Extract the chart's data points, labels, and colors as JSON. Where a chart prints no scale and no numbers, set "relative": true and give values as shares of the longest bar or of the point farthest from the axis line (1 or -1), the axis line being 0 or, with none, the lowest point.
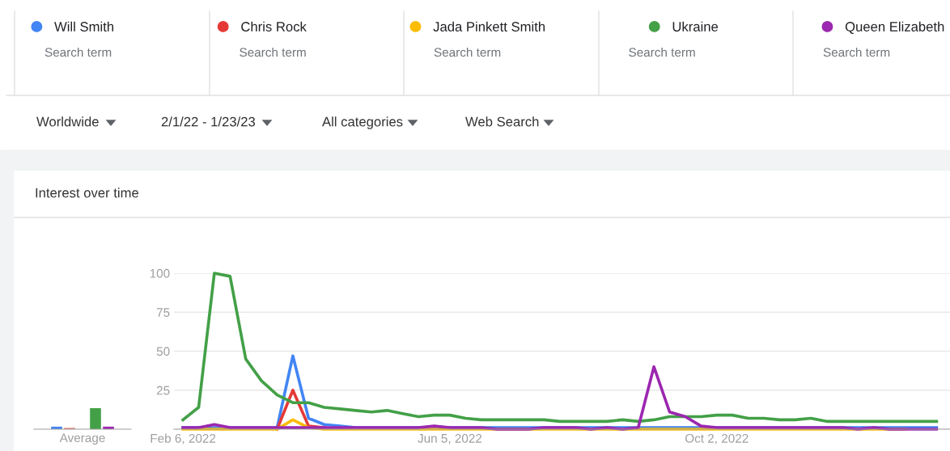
{
  "chart_data": [
    {
      "type": "bar",
      "relative": true,
      "categories": [
        "Average"
      ],
      "series": [
        {
          "color": "#4285f4",
          "values": [
            0.12
          ]
        },
        {
          "color": "#e57368",
          "values": [
            0.06
          ]
        },
        {
          "color": "#f4b400",
          "values": [
            0.0
          ]
        },
        {
          "color": "#43a047",
          "values": [
            1
          ]
        },
        {
          "color": "#9c27b0",
          "values": [
            0.12
          ]
        }
      ]
    },
    {
      "type": "line",
      "title": "Interest over time",
      "x": [
        "2022-02-06",
        "2022-02-13",
        "2022-02-20",
        "2022-02-27",
        "2022-03-06",
        "2022-03-13",
        "2022-03-20",
        "2022-03-27",
        "2022-04-03",
        "2022-04-10",
        "2022-04-17",
        "2022-04-24",
        "2022-05-01",
        "2022-05-08",
        "2022-05-15",
        "2022-05-22",
        "2022-05-29",
        "2022-06-05",
        "2022-06-12",
        "2022-06-19",
        "2022-06-26",
        "2022-07-03",
        "2022-07-10",
        "2022-07-17",
        "2022-07-24",
        "2022-07-31",
        "2022-08-07",
        "2022-08-14",
        "2022-08-21",
        "2022-08-28",
        "2022-09-04",
        "2022-09-11",
        "2022-09-18",
        "2022-09-25",
        "2022-10-02",
        "2022-10-09",
        "2022-10-16",
        "2022-10-23",
        "2022-10-30",
        "2022-11-06",
        "2022-11-13",
        "2022-11-20",
        "2022-11-27",
        "2022-12-04",
        "2022-12-11",
        "2022-12-18",
        "2022-12-25",
        "2023-01-01",
        "2023-01-08"
      ],
      "series": [
        {
          "name": "Will Smith",
          "color": "#4285f4",
          "values": [
            1,
            1,
            1,
            1,
            1,
            1,
            1,
            47,
            7,
            3,
            2,
            1,
            1,
            1,
            1,
            1,
            1,
            1,
            1,
            1,
            1,
            1,
            1,
            1,
            1,
            1,
            1,
            1,
            1,
            1,
            1,
            1,
            1,
            1,
            1,
            1,
            1,
            1,
            1,
            1,
            1,
            1,
            1,
            1,
            1,
            1,
            1,
            1,
            1
          ]
        },
        {
          "name": "Chris Rock",
          "color": "#e53935",
          "values": [
            null,
            null,
            null,
            null,
            null,
            null,
            0,
            25,
            2,
            1,
            null,
            null,
            null,
            null,
            null,
            null,
            null,
            null,
            null,
            null,
            null,
            null,
            null,
            null,
            null,
            null,
            null,
            null,
            null,
            null,
            null,
            null,
            null,
            null,
            null,
            null,
            null,
            null,
            null,
            null,
            null,
            null,
            null,
            null,
            null,
            null,
            null,
            null,
            null
          ]
        },
        {
          "name": "Jada Pinkett Smith",
          "color": "#fbbc04",
          "values": [
            0,
            0,
            0,
            0,
            0,
            0,
            0,
            6,
            1,
            0,
            0,
            0,
            0,
            0,
            0,
            0,
            0,
            0,
            0,
            0,
            0,
            0,
            0,
            0,
            0,
            0,
            0,
            0,
            0,
            0,
            0,
            0,
            0,
            0,
            0,
            0,
            0,
            0,
            0,
            0,
            0,
            0,
            0,
            0,
            0,
            0,
            0,
            null,
            null
          ]
        },
        {
          "name": "Ukraine",
          "color": "#43a047",
          "values": [
            6,
            14,
            100,
            98,
            45,
            31,
            22,
            17,
            17,
            14,
            13,
            12,
            11,
            12,
            10,
            8,
            9,
            9,
            7,
            6,
            6,
            6,
            6,
            6,
            5,
            5,
            5,
            5,
            6,
            5,
            6,
            8,
            8,
            8,
            9,
            9,
            7,
            7,
            6,
            6,
            7,
            5,
            5,
            5,
            5,
            5,
            5,
            5,
            5
          ]
        },
        {
          "name": "Queen Elizabeth",
          "color": "#9c27b0",
          "values": [
            1,
            1,
            3,
            1,
            1,
            1,
            1,
            1,
            1,
            1,
            1,
            1,
            1,
            1,
            1,
            1,
            2,
            1,
            1,
            1,
            0,
            0,
            0,
            1,
            1,
            1,
            0,
            1,
            0,
            1,
            40,
            11,
            8,
            2,
            1,
            1,
            1,
            1,
            1,
            1,
            1,
            1,
            1,
            0,
            1,
            0,
            0,
            0,
            0
          ]
        }
      ],
      "xlim": [
        "2022-02-02",
        "2023-01-14"
      ],
      "xticks": [
        {
          "value": "2022-02-06",
          "label": "Feb 6, 2022"
        },
        {
          "value": "2022-06-05",
          "label": "Jun 5, 2022"
        },
        {
          "value": "2022-10-02",
          "label": "Oct 2, 2022"
        }
      ],
      "ylim": [
        0,
        100
      ],
      "yticks": [
        {
          "value": 0,
          "label": null
        },
        25,
        50,
        75,
        100
      ],
      "grid": "y",
      "legend": "top",
      "marker": "none",
      "line_style": "solid",
      "annotations": [
        "Search term",
        "Search term",
        "Search term",
        "Search term",
        "Search term",
        "Worldwide",
        "2/1/22 - 1/23/23",
        "All categories",
        "Web Search"
      ]
    }
  ]
}
